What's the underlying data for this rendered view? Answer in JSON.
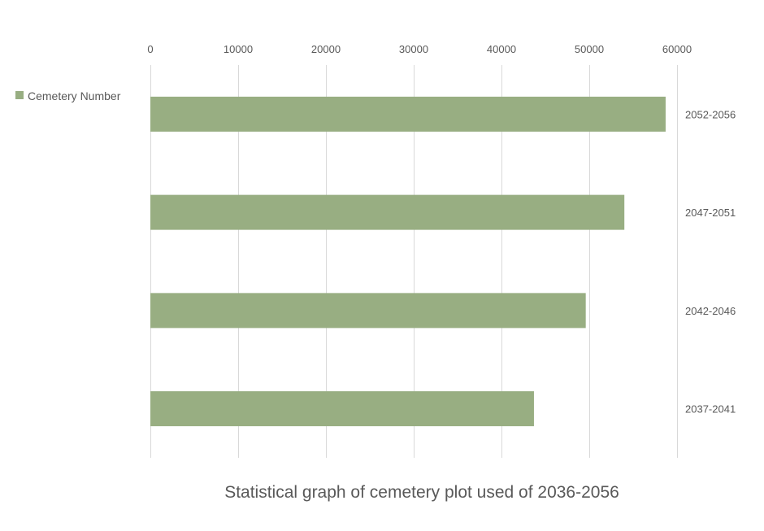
{
  "chart_data": {
    "type": "bar",
    "orientation": "horizontal",
    "title": "Statistical graph of cemetery plot used of 2036-2056",
    "xlabel": "",
    "ylabel": "",
    "categories": [
      "2052-2056",
      "2047-2051",
      "2042-2046",
      "2037-2041"
    ],
    "series": [
      {
        "name": "Cemetery Number",
        "values": [
          58700,
          54000,
          49600,
          43700
        ],
        "color": "#98ae82"
      }
    ],
    "xlim": [
      0,
      60000
    ],
    "xticks": [
      "0",
      "10000",
      "20000",
      "30000",
      "40000",
      "50000",
      "60000"
    ],
    "x_axis_position": "top",
    "category_axis_position": "right",
    "grid": true,
    "legend": {
      "position": "top-left",
      "entries": [
        "Cemetery Number"
      ]
    }
  }
}
